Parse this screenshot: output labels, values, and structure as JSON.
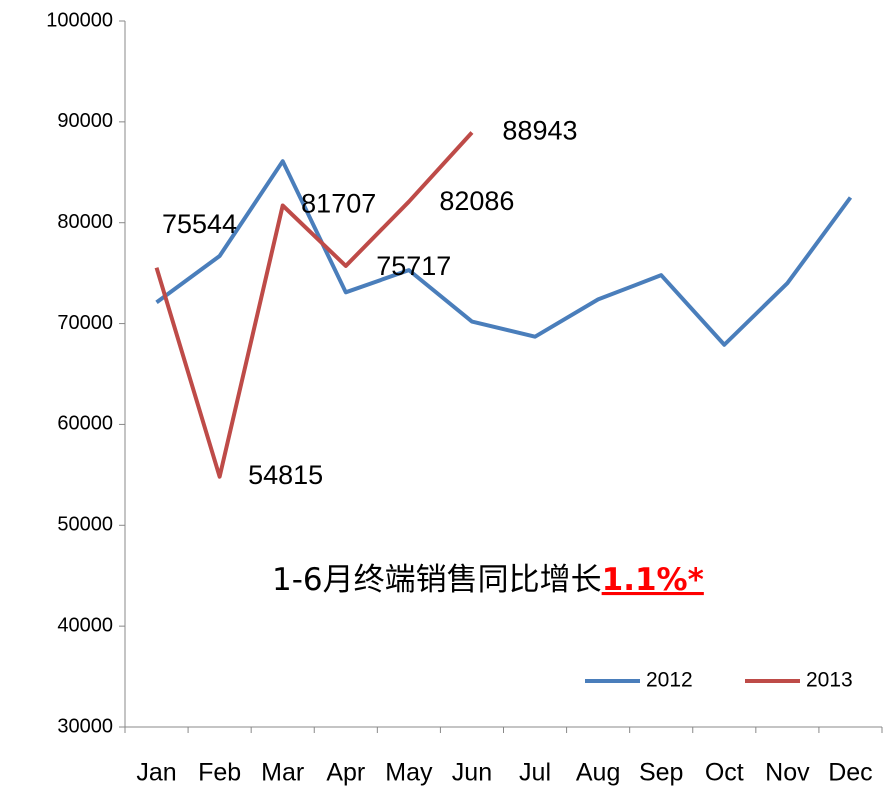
{
  "chart_data": {
    "type": "line",
    "categories": [
      "Jan",
      "Feb",
      "Mar",
      "Apr",
      "May",
      "Jun",
      "Jul",
      "Aug",
      "Sep",
      "Oct",
      "Nov",
      "Dec"
    ],
    "series": [
      {
        "name": "2012",
        "color": "#4a7ebb",
        "values": [
          72100,
          76700,
          86100,
          73100,
          75300,
          70200,
          68700,
          72400,
          74800,
          67900,
          74000,
          82500
        ]
      },
      {
        "name": "2013",
        "color": "#be4b48",
        "values": [
          75544,
          54815,
          81707,
          75717,
          82086,
          88943,
          null,
          null,
          null,
          null,
          null,
          null
        ]
      }
    ],
    "ylim": [
      30000,
      100000
    ],
    "yticks": [
      30000,
      40000,
      50000,
      60000,
      70000,
      80000,
      90000,
      100000
    ],
    "annotation": {
      "text": "1-6月终端销售同比增长",
      "highlight": "1.1%*"
    },
    "legend": "lower right"
  }
}
